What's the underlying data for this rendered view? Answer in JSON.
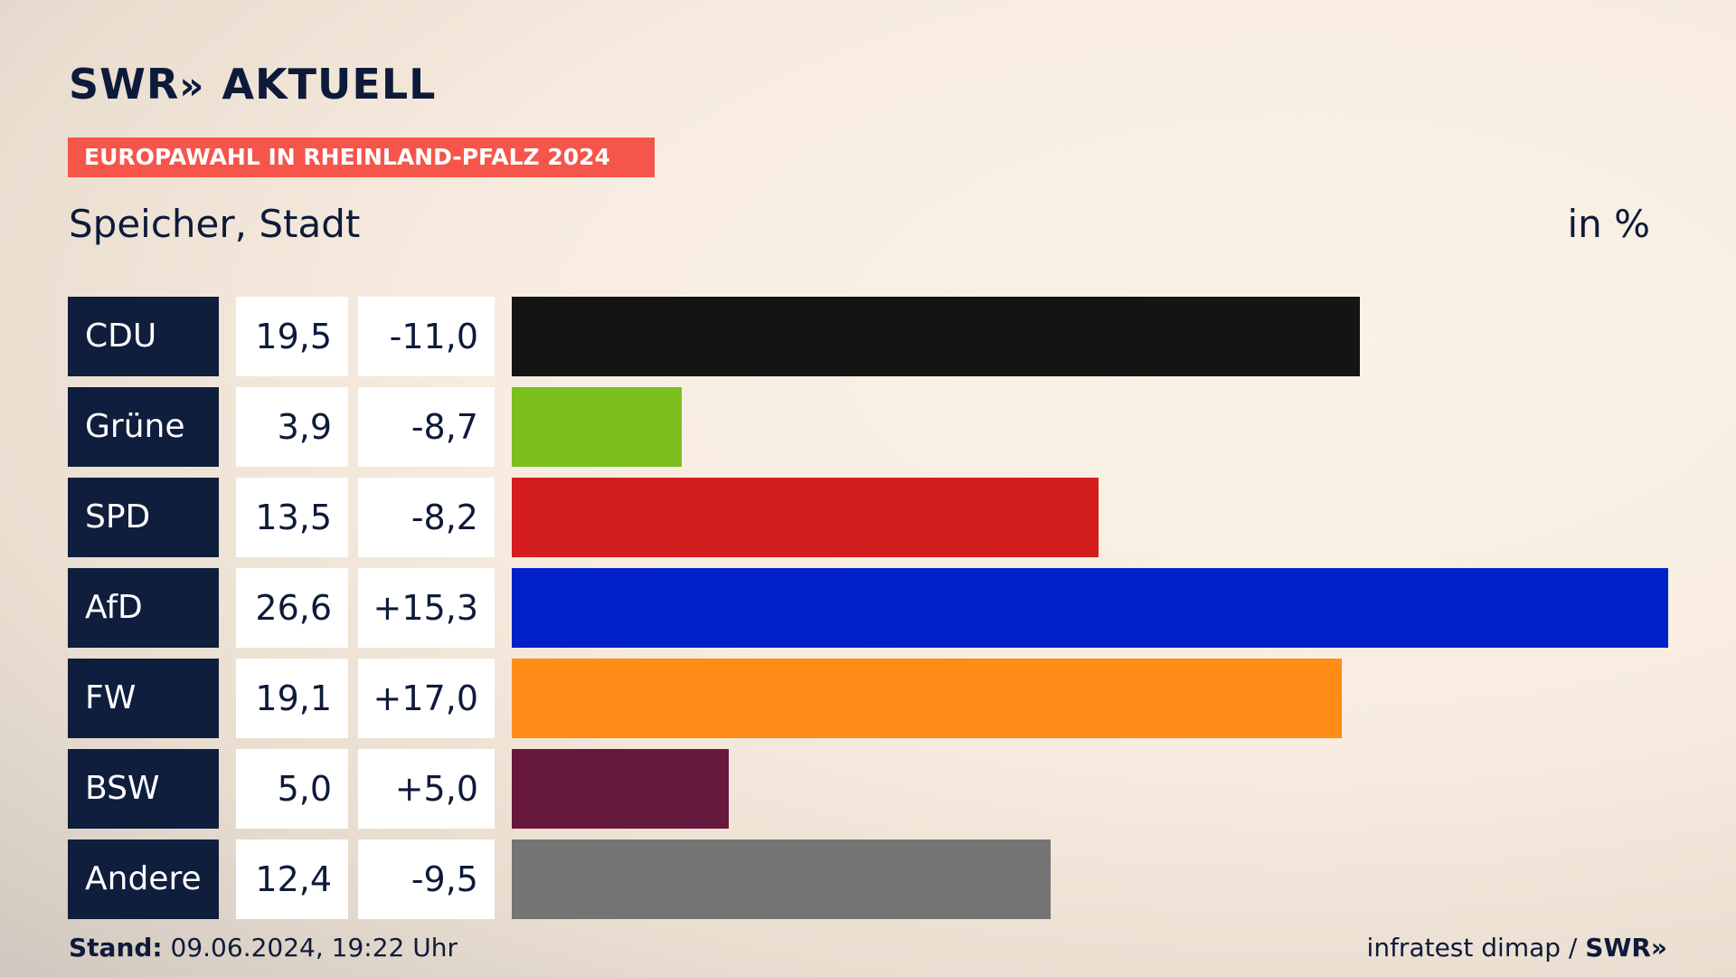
{
  "logo": {
    "brand": "SWR",
    "chevrons": "»",
    "product": "AKTUELL"
  },
  "banner": "EUROPAWAHL IN RHEINLAND-PFALZ 2024",
  "location": "Speicher, Stadt",
  "unit": "in %",
  "colors": {
    "navy": "#0f1e3d",
    "banner_red": "#f5554a"
  },
  "chart_data": {
    "type": "bar",
    "orientation": "horizontal",
    "categories": [
      "CDU",
      "Grüne",
      "SPD",
      "AfD",
      "FW",
      "BSW",
      "Andere"
    ],
    "values": [
      19.5,
      3.9,
      13.5,
      26.6,
      19.1,
      5.0,
      12.4
    ],
    "value_labels": [
      "19,5",
      "3,9",
      "13,5",
      "26,6",
      "19,1",
      "5,0",
      "12,4"
    ],
    "change_labels": [
      "-11,0",
      "-8,7",
      "-8,2",
      "+15,3",
      "+17,0",
      "+5,0",
      "-9,5"
    ],
    "changes": [
      -11.0,
      -8.7,
      -8.2,
      15.3,
      17.0,
      5.0,
      -9.5
    ],
    "colors": [
      "#141414",
      "#7bbf1e",
      "#d41e1e",
      "#0021c8",
      "#ff8c16",
      "#67183f",
      "#747474"
    ],
    "xlim": [
      0,
      26.6
    ],
    "grid": false
  },
  "footer": {
    "stand_label": "Stand:",
    "stand_value": "09.06.2024, 19:22 Uhr",
    "source": "infratest dimap /",
    "source_brand": "SWR",
    "source_chevrons": "»"
  }
}
